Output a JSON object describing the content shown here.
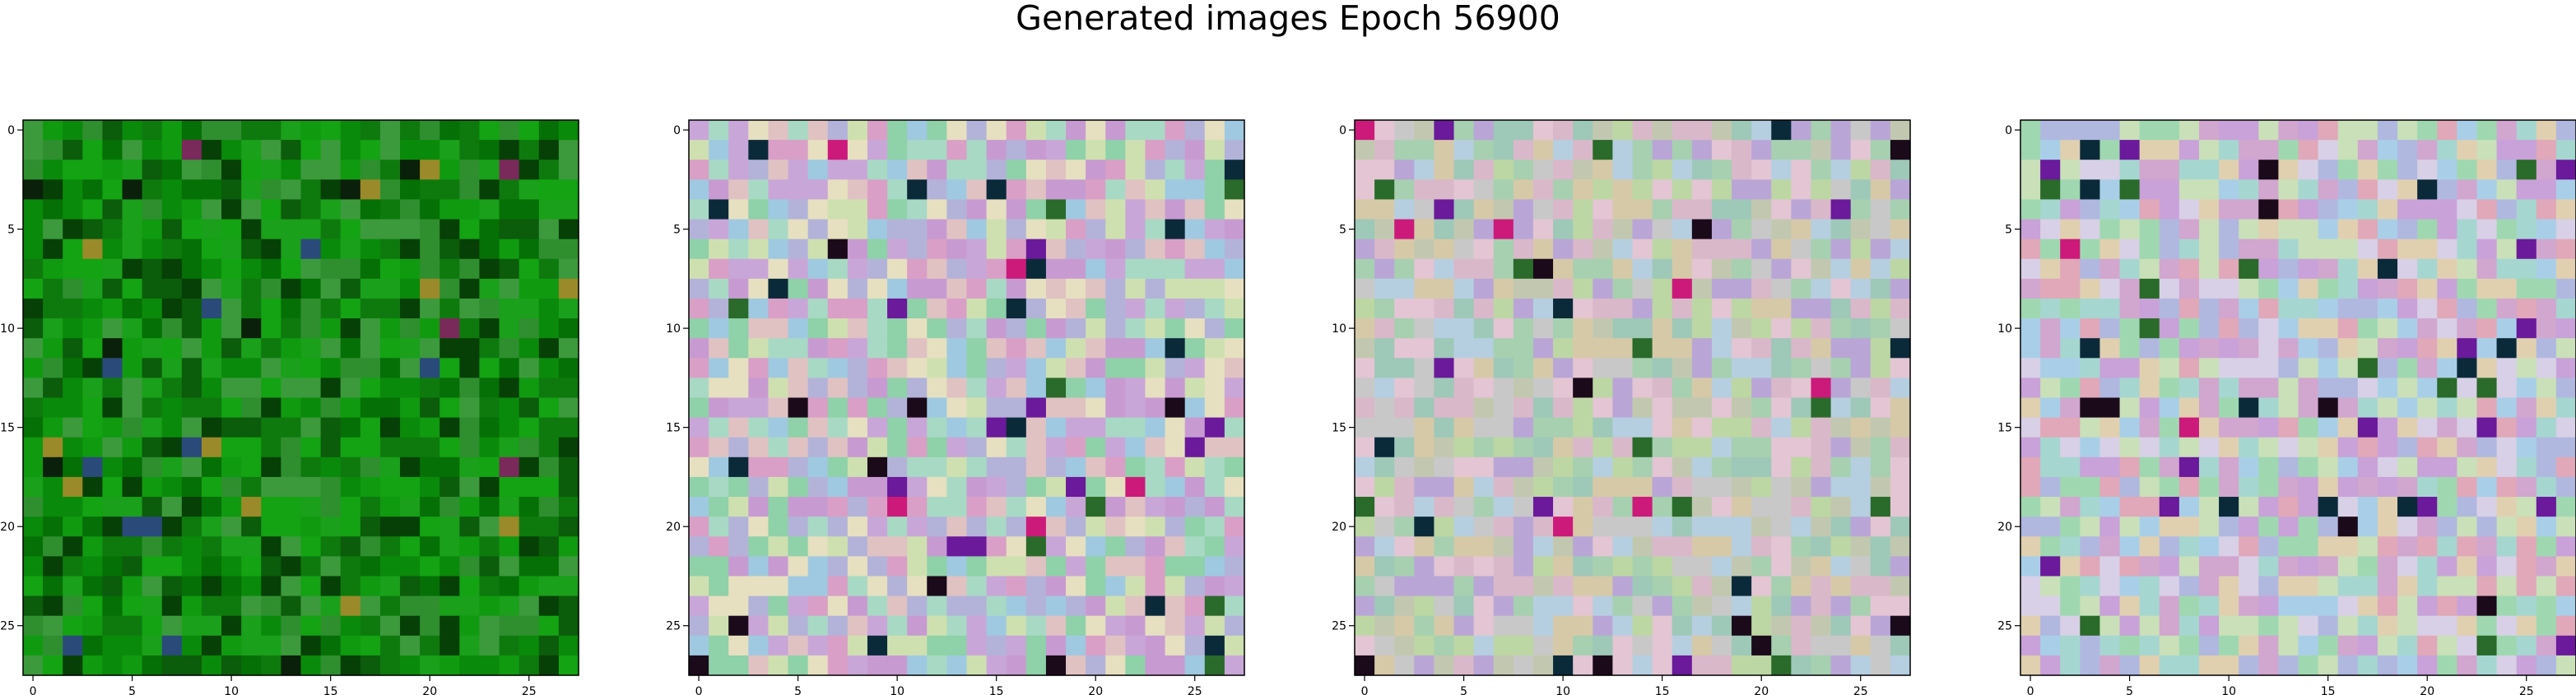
{
  "figure": {
    "title": "Generated images Epoch 56900"
  },
  "chart_data": {
    "type": "heatmap",
    "title": "Generated images Epoch 56900",
    "panel_count": 4,
    "grid_size": [
      28,
      28
    ],
    "xlim": [
      -0.5,
      27.5
    ],
    "ylim": [
      27.5,
      -0.5
    ],
    "x_ticks": [
      0,
      5,
      10,
      15,
      20,
      25
    ],
    "y_ticks": [
      0,
      5,
      10,
      15,
      20,
      25
    ],
    "grid": false,
    "panels": [
      {
        "palette": "green",
        "colors": [
          "#0a8a0a",
          "#057005",
          "#109a10",
          "#0b5c0b",
          "#1aa01a",
          "#2f8f2f",
          "#0e7a0e",
          "#064006",
          "#3c9a3c",
          "#13a313"
        ]
      },
      {
        "palette": "pastel-noise",
        "colors": [
          "#c9a6d8",
          "#a8d9c4",
          "#e0c2c2",
          "#b3b3d9",
          "#cfe0b0",
          "#d99fc6",
          "#9fc9e0",
          "#e6e0c0",
          "#8fd1a8",
          "#c79bd1"
        ]
      },
      {
        "palette": "pastel-noise",
        "colors": [
          "#c2c8b0",
          "#b5cfe0",
          "#d9b8c9",
          "#a6d0b0",
          "#d6c9a8",
          "#b9a6d6",
          "#9ec8b8",
          "#e3c5d3",
          "#bcd7a3",
          "#c8c8c8"
        ]
      },
      {
        "palette": "pastel-noise",
        "colors": [
          "#d1a6cf",
          "#a6d6d0",
          "#e0d0b0",
          "#b0b8e0",
          "#c9e0b9",
          "#e0a8b8",
          "#a9cfe8",
          "#d8d0e6",
          "#9fd8b0",
          "#c8a2d8"
        ]
      }
    ]
  }
}
